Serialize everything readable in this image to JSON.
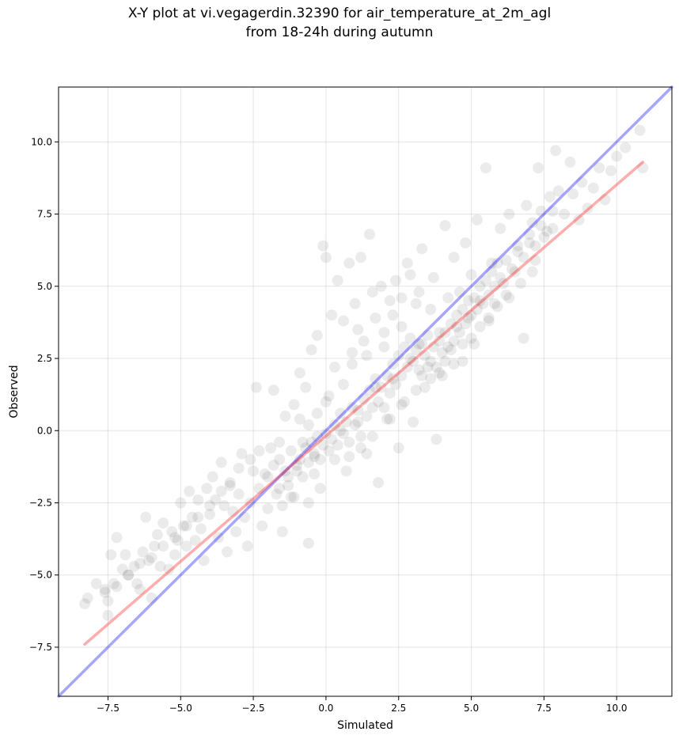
{
  "chart_data": {
    "type": "scatter",
    "title_line1": "X-Y plot at vi.vegagerdin.32390 for air_temperature_at_2m_agl",
    "title_line2": "from 18-24h during autumn",
    "xlabel": "Simulated",
    "ylabel": "Observed",
    "xlim": [
      -9.2,
      11.9
    ],
    "ylim": [
      -9.2,
      11.9
    ],
    "x_ticks": [
      -7.5,
      -5.0,
      -2.5,
      0.0,
      2.5,
      5.0,
      7.5,
      10.0
    ],
    "y_ticks": [
      -7.5,
      -5.0,
      -2.5,
      0.0,
      2.5,
      5.0,
      7.5,
      10.0
    ],
    "x_tick_labels": [
      "−7.5",
      "−5.0",
      "−2.5",
      "0.0",
      "2.5",
      "5.0",
      "7.5",
      "10.0"
    ],
    "y_tick_labels": [
      "−7.5",
      "−5.0",
      "−2.5",
      "0.0",
      "2.5",
      "5.0",
      "7.5",
      "10.0"
    ],
    "grid": true,
    "point_color": "#000000",
    "point_opacity": 0.08,
    "identity_line": {
      "color": "#0000ff",
      "from": [
        -9.2,
        -9.2
      ],
      "to": [
        11.9,
        11.9
      ]
    },
    "fit_line": {
      "color": "#ff0000",
      "from": [
        -8.3,
        -7.4
      ],
      "to": [
        10.9,
        9.3
      ]
    },
    "points": [
      [
        -8.3,
        -6.0
      ],
      [
        -8.2,
        -5.8
      ],
      [
        -7.9,
        -5.3
      ],
      [
        -7.6,
        -5.5
      ],
      [
        -7.5,
        -5.9
      ],
      [
        -7.5,
        -6.4
      ],
      [
        -7.3,
        -5.3
      ],
      [
        -7.2,
        -3.7
      ],
      [
        -7.4,
        -4.3
      ],
      [
        -7.0,
        -4.8
      ],
      [
        -6.9,
        -4.3
      ],
      [
        -6.8,
        -5.0
      ],
      [
        -6.6,
        -4.7
      ],
      [
        -6.5,
        -5.3
      ],
      [
        -6.4,
        -5.5
      ],
      [
        -6.3,
        -4.2
      ],
      [
        -6.2,
        -3.0
      ],
      [
        -6.1,
        -4.5
      ],
      [
        -6.0,
        -5.8
      ],
      [
        -5.9,
        -4.0
      ],
      [
        -5.8,
        -3.6
      ],
      [
        -5.7,
        -4.7
      ],
      [
        -5.6,
        -3.2
      ],
      [
        -5.4,
        -4.8
      ],
      [
        -5.3,
        -3.5
      ],
      [
        -5.2,
        -4.3
      ],
      [
        -5.1,
        -3.8
      ],
      [
        -5.0,
        -2.5
      ],
      [
        -4.9,
        -3.3
      ],
      [
        -4.8,
        -4.0
      ],
      [
        -4.7,
        -2.1
      ],
      [
        -4.6,
        -3.0
      ],
      [
        -4.5,
        -3.8
      ],
      [
        -4.4,
        -2.4
      ],
      [
        -4.3,
        -3.4
      ],
      [
        -4.2,
        -4.5
      ],
      [
        -4.1,
        -2.0
      ],
      [
        -4.0,
        -2.9
      ],
      [
        -3.9,
        -1.6
      ],
      [
        -3.8,
        -2.4
      ],
      [
        -3.7,
        -3.7
      ],
      [
        -3.6,
        -1.1
      ],
      [
        -3.5,
        -2.6
      ],
      [
        -3.4,
        -4.2
      ],
      [
        -3.3,
        -1.9
      ],
      [
        -3.2,
        -2.8
      ],
      [
        -3.1,
        -3.5
      ],
      [
        -3.0,
        -2.2
      ],
      [
        -2.9,
        -0.8
      ],
      [
        -2.8,
        -3.0
      ],
      [
        -2.7,
        -4.0
      ],
      [
        -2.6,
        -2.5
      ],
      [
        -2.5,
        -1.4
      ],
      [
        -2.4,
        1.5
      ],
      [
        -2.3,
        -2.0
      ],
      [
        -2.2,
        -3.3
      ],
      [
        -2.1,
        -1.5
      ],
      [
        -2.0,
        -2.7
      ],
      [
        -1.9,
        -0.6
      ],
      [
        -1.8,
        1.4
      ],
      [
        -1.7,
        -2.2
      ],
      [
        -1.6,
        -1.0
      ],
      [
        -1.5,
        -3.5
      ],
      [
        -1.4,
        0.5
      ],
      [
        -1.3,
        -1.6
      ],
      [
        -1.2,
        -2.3
      ],
      [
        -1.1,
        0.9
      ],
      [
        -1.0,
        -1.2
      ],
      [
        -0.9,
        2.0
      ],
      [
        -0.8,
        -0.4
      ],
      [
        -0.7,
        1.5
      ],
      [
        -0.6,
        -3.9
      ],
      [
        -0.5,
        2.8
      ],
      [
        -0.4,
        -0.9
      ],
      [
        -0.3,
        3.3
      ],
      [
        -0.2,
        -2.0
      ],
      [
        -0.1,
        6.4
      ],
      [
        0.0,
        6.0
      ],
      [
        0.1,
        1.2
      ],
      [
        0.2,
        4.0
      ],
      [
        0.3,
        2.2
      ],
      [
        0.4,
        5.2
      ],
      [
        0.5,
        0.0
      ],
      [
        0.6,
        3.8
      ],
      [
        0.7,
        -1.4
      ],
      [
        0.8,
        5.8
      ],
      [
        0.9,
        2.7
      ],
      [
        1.0,
        4.4
      ],
      [
        1.1,
        0.3
      ],
      [
        1.2,
        6.0
      ],
      [
        1.3,
        3.1
      ],
      [
        1.4,
        -0.8
      ],
      [
        1.5,
        6.8
      ],
      [
        1.6,
        4.8
      ],
      [
        1.7,
        1.5
      ],
      [
        1.8,
        -1.8
      ],
      [
        1.9,
        5.0
      ],
      [
        2.0,
        2.9
      ],
      [
        2.1,
        0.4
      ],
      [
        2.2,
        4.5
      ],
      [
        2.3,
        1.8
      ],
      [
        2.4,
        5.2
      ],
      [
        2.5,
        -0.6
      ],
      [
        2.6,
        3.6
      ],
      [
        2.7,
        1.0
      ],
      [
        2.8,
        5.8
      ],
      [
        2.9,
        2.5
      ],
      [
        3.0,
        0.3
      ],
      [
        3.1,
        4.4
      ],
      [
        3.2,
        3.0
      ],
      [
        3.3,
        6.3
      ],
      [
        3.4,
        1.5
      ],
      [
        3.5,
        2.2
      ],
      [
        3.6,
        4.2
      ],
      [
        3.7,
        5.3
      ],
      [
        3.8,
        -0.3
      ],
      [
        3.9,
        3.4
      ],
      [
        4.0,
        1.9
      ],
      [
        4.1,
        7.1
      ],
      [
        4.2,
        4.6
      ],
      [
        4.3,
        2.8
      ],
      [
        4.4,
        6.0
      ],
      [
        4.5,
        3.6
      ],
      [
        4.6,
        4.8
      ],
      [
        4.7,
        2.4
      ],
      [
        4.8,
        6.5
      ],
      [
        4.9,
        3.9
      ],
      [
        5.0,
        5.4
      ],
      [
        5.1,
        3.0
      ],
      [
        5.2,
        7.3
      ],
      [
        5.3,
        4.5
      ],
      [
        5.5,
        9.1
      ],
      [
        5.6,
        3.9
      ],
      [
        5.7,
        5.8
      ],
      [
        5.8,
        4.4
      ],
      [
        6.0,
        7.0
      ],
      [
        6.1,
        5.1
      ],
      [
        6.2,
        4.7
      ],
      [
        6.3,
        7.5
      ],
      [
        6.5,
        5.5
      ],
      [
        6.6,
        6.2
      ],
      [
        6.8,
        3.2
      ],
      [
        6.9,
        7.8
      ],
      [
        7.0,
        6.5
      ],
      [
        7.1,
        7.2
      ],
      [
        7.2,
        5.9
      ],
      [
        7.3,
        9.1
      ],
      [
        7.4,
        7.6
      ],
      [
        7.5,
        6.7
      ],
      [
        7.7,
        8.1
      ],
      [
        7.8,
        7.0
      ],
      [
        7.9,
        9.7
      ],
      [
        8.0,
        8.3
      ],
      [
        8.2,
        7.5
      ],
      [
        8.4,
        9.3
      ],
      [
        8.5,
        8.2
      ],
      [
        8.7,
        7.3
      ],
      [
        8.8,
        8.6
      ],
      [
        9.0,
        7.7
      ],
      [
        9.2,
        8.4
      ],
      [
        9.4,
        9.1
      ],
      [
        9.6,
        8.0
      ],
      [
        9.8,
        9.0
      ],
      [
        10.0,
        9.5
      ],
      [
        10.3,
        9.8
      ],
      [
        10.8,
        10.4
      ],
      [
        10.9,
        9.1
      ],
      [
        -1.0,
        -1.4
      ],
      [
        -0.9,
        -1.0
      ],
      [
        -0.8,
        -1.6
      ],
      [
        -0.7,
        -0.6
      ],
      [
        -0.6,
        -1.1
      ],
      [
        -0.5,
        -0.4
      ],
      [
        -0.4,
        -0.8
      ],
      [
        -0.3,
        -0.2
      ],
      [
        -0.2,
        -1.0
      ],
      [
        -0.1,
        -0.5
      ],
      [
        0.0,
        -0.1
      ],
      [
        0.1,
        -0.7
      ],
      [
        0.2,
        -0.3
      ],
      [
        0.3,
        0.2
      ],
      [
        0.4,
        -0.5
      ],
      [
        0.5,
        0.6
      ],
      [
        0.6,
        -0.1
      ],
      [
        0.7,
        0.3
      ],
      [
        0.8,
        -0.4
      ],
      [
        0.9,
        0.8
      ],
      [
        1.0,
        0.2
      ],
      [
        1.1,
        0.7
      ],
      [
        1.2,
        -0.2
      ],
      [
        1.3,
        1.1
      ],
      [
        1.4,
        0.5
      ],
      [
        1.5,
        1.4
      ],
      [
        1.6,
        0.8
      ],
      [
        1.7,
        1.8
      ],
      [
        1.8,
        1.0
      ],
      [
        1.9,
        1.5
      ],
      [
        2.0,
        0.8
      ],
      [
        2.1,
        1.9
      ],
      [
        2.2,
        1.3
      ],
      [
        2.3,
        2.3
      ],
      [
        2.4,
        1.6
      ],
      [
        2.5,
        2.6
      ],
      [
        2.6,
        1.9
      ],
      [
        2.7,
        2.9
      ],
      [
        2.8,
        2.2
      ],
      [
        2.9,
        3.2
      ],
      [
        3.0,
        2.4
      ],
      [
        3.1,
        2.8
      ],
      [
        3.2,
        2.1
      ],
      [
        3.3,
        3.0
      ],
      [
        3.4,
        2.6
      ],
      [
        3.5,
        3.3
      ],
      [
        3.6,
        2.4
      ],
      [
        3.7,
        2.9
      ],
      [
        3.8,
        2.2
      ],
      [
        3.9,
        3.1
      ],
      [
        4.0,
        2.7
      ],
      [
        4.1,
        3.4
      ],
      [
        4.2,
        2.9
      ],
      [
        4.3,
        3.7
      ],
      [
        4.4,
        3.1
      ],
      [
        4.5,
        4.0
      ],
      [
        4.6,
        3.4
      ],
      [
        4.7,
        4.2
      ],
      [
        4.8,
        3.7
      ],
      [
        4.9,
        4.5
      ],
      [
        5.0,
        4.0
      ],
      [
        5.1,
        4.6
      ],
      [
        5.2,
        4.2
      ],
      [
        5.3,
        5.0
      ],
      [
        5.4,
        4.4
      ],
      [
        5.5,
        5.2
      ],
      [
        5.6,
        4.7
      ],
      [
        5.7,
        5.5
      ],
      [
        5.8,
        5.0
      ],
      [
        5.9,
        5.8
      ],
      [
        6.0,
        5.3
      ],
      [
        6.2,
        5.9
      ],
      [
        6.4,
        5.6
      ],
      [
        6.6,
        6.4
      ],
      [
        6.8,
        6.0
      ],
      [
        7.0,
        6.8
      ],
      [
        7.2,
        6.4
      ],
      [
        7.4,
        7.1
      ],
      [
        7.6,
        6.9
      ],
      [
        7.8,
        7.6
      ],
      [
        -2.0,
        -1.6
      ],
      [
        -1.8,
        -1.2
      ],
      [
        -1.6,
        -2.0
      ],
      [
        -1.4,
        -1.4
      ],
      [
        -1.2,
        -0.7
      ],
      [
        -1.1,
        -2.3
      ],
      [
        -1.5,
        -2.6
      ],
      [
        -1.3,
        -1.9
      ],
      [
        -0.6,
        -2.5
      ],
      [
        -0.4,
        -1.5
      ],
      [
        0.3,
        -1.0
      ],
      [
        0.8,
        -0.9
      ],
      [
        1.2,
        -0.6
      ],
      [
        1.6,
        -0.2
      ],
      [
        2.2,
        0.4
      ],
      [
        2.6,
        0.9
      ],
      [
        3.1,
        1.4
      ],
      [
        3.3,
        1.9
      ],
      [
        3.6,
        1.8
      ],
      [
        3.9,
        2.0
      ],
      [
        4.1,
        2.4
      ],
      [
        4.4,
        2.3
      ],
      [
        4.7,
        3.0
      ],
      [
        5.0,
        3.2
      ],
      [
        5.3,
        3.6
      ],
      [
        5.6,
        3.8
      ],
      [
        5.9,
        4.3
      ],
      [
        6.3,
        4.6
      ],
      [
        6.7,
        5.1
      ],
      [
        7.1,
        5.5
      ],
      [
        0.6,
        1.6
      ],
      [
        0.9,
        2.3
      ],
      [
        1.1,
        3.5
      ],
      [
        1.4,
        2.6
      ],
      [
        1.7,
        3.9
      ],
      [
        2.0,
        3.4
      ],
      [
        2.3,
        4.0
      ],
      [
        2.6,
        4.6
      ],
      [
        2.9,
        5.4
      ],
      [
        3.2,
        4.8
      ],
      [
        -0.3,
        0.6
      ],
      [
        0.0,
        1.0
      ],
      [
        -0.6,
        0.2
      ],
      [
        -0.9,
        0.4
      ],
      [
        -1.6,
        -0.4
      ],
      [
        -2.3,
        -0.7
      ],
      [
        -2.6,
        -1.0
      ],
      [
        -3.0,
        -1.3
      ],
      [
        -3.3,
        -1.8
      ],
      [
        -3.6,
        -2.1
      ],
      [
        -4.0,
        -2.6
      ],
      [
        -4.4,
        -3.0
      ],
      [
        -4.8,
        -3.3
      ],
      [
        -5.2,
        -3.7
      ],
      [
        -5.6,
        -4.0
      ],
      [
        -6.0,
        -4.4
      ],
      [
        -6.4,
        -4.6
      ],
      [
        -6.8,
        -5.0
      ],
      [
        -7.2,
        -5.4
      ],
      [
        -7.6,
        -5.6
      ]
    ]
  }
}
